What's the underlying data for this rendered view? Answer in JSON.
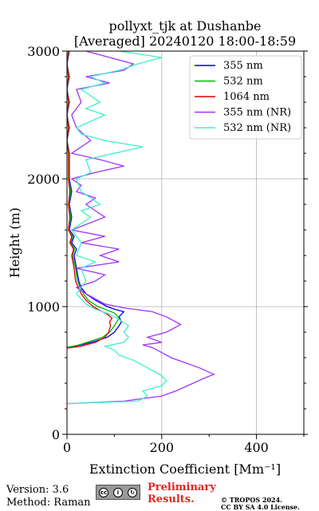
{
  "chart_data": {
    "type": "line",
    "title": "pollyxt_tjk at Dushanbe",
    "subtitle": "[Averaged] 20240120 18:00-18:59",
    "xlabel": "Extinction Coefficient [Mm⁻¹]",
    "ylabel": "Height (m)",
    "xlim": [
      0,
      500
    ],
    "ylim": [
      0,
      3000
    ],
    "xticks": [
      0,
      200,
      400
    ],
    "yticks": [
      0,
      1000,
      2000,
      3000
    ],
    "grid": true,
    "legend_position": "top-right",
    "series": [
      {
        "name": "355 nm",
        "color": "#0000ee",
        "points": [
          [
            0,
            680
          ],
          [
            30,
            700
          ],
          [
            60,
            730
          ],
          [
            85,
            760
          ],
          [
            100,
            800
          ],
          [
            110,
            850
          ],
          [
            115,
            880
          ],
          [
            110,
            920
          ],
          [
            120,
            960
          ],
          [
            100,
            980
          ],
          [
            85,
            1000
          ],
          [
            60,
            1050
          ],
          [
            40,
            1100
          ],
          [
            30,
            1150
          ],
          [
            25,
            1200
          ],
          [
            20,
            1300
          ],
          [
            15,
            1400
          ],
          [
            20,
            1450
          ],
          [
            10,
            1500
          ],
          [
            15,
            1550
          ],
          [
            5,
            1600
          ],
          [
            10,
            1700
          ],
          [
            5,
            1800
          ],
          [
            10,
            1900
          ],
          [
            5,
            2000
          ],
          [
            5,
            2100
          ],
          [
            5,
            2200
          ],
          [
            0,
            2300
          ],
          [
            5,
            2400
          ],
          [
            0,
            2500
          ],
          [
            5,
            2600
          ],
          [
            0,
            2700
          ],
          [
            5,
            2800
          ],
          [
            0,
            2900
          ],
          [
            5,
            3000
          ]
        ]
      },
      {
        "name": "532 nm",
        "color": "#00bb00",
        "points": [
          [
            0,
            680
          ],
          [
            25,
            700
          ],
          [
            50,
            730
          ],
          [
            75,
            760
          ],
          [
            90,
            800
          ],
          [
            100,
            850
          ],
          [
            105,
            880
          ],
          [
            110,
            910
          ],
          [
            100,
            950
          ],
          [
            80,
            980
          ],
          [
            65,
            1000
          ],
          [
            45,
            1050
          ],
          [
            35,
            1100
          ],
          [
            28,
            1150
          ],
          [
            22,
            1200
          ],
          [
            18,
            1300
          ],
          [
            12,
            1400
          ],
          [
            16,
            1450
          ],
          [
            8,
            1500
          ],
          [
            12,
            1550
          ],
          [
            4,
            1600
          ],
          [
            8,
            1700
          ],
          [
            4,
            1800
          ],
          [
            8,
            1900
          ],
          [
            4,
            2000
          ],
          [
            4,
            2100
          ],
          [
            4,
            2200
          ],
          [
            0,
            2300
          ],
          [
            4,
            2400
          ],
          [
            0,
            2500
          ],
          [
            4,
            2600
          ],
          [
            0,
            2700
          ],
          [
            4,
            2800
          ],
          [
            0,
            2900
          ],
          [
            4,
            3000
          ]
        ]
      },
      {
        "name": "1064 nm",
        "color": "#dd0000",
        "points": [
          [
            0,
            675
          ],
          [
            30,
            690
          ],
          [
            60,
            720
          ],
          [
            80,
            760
          ],
          [
            88,
            800
          ],
          [
            92,
            850
          ],
          [
            90,
            880
          ],
          [
            95,
            910
          ],
          [
            85,
            940
          ],
          [
            70,
            970
          ],
          [
            55,
            1000
          ],
          [
            40,
            1050
          ],
          [
            30,
            1100
          ],
          [
            24,
            1150
          ],
          [
            18,
            1200
          ],
          [
            15,
            1300
          ],
          [
            10,
            1400
          ],
          [
            14,
            1450
          ],
          [
            6,
            1500
          ],
          [
            10,
            1550
          ],
          [
            3,
            1600
          ],
          [
            6,
            1700
          ],
          [
            3,
            1800
          ],
          [
            6,
            1900
          ],
          [
            3,
            2000
          ],
          [
            3,
            2100
          ],
          [
            3,
            2200
          ],
          [
            0,
            2300
          ],
          [
            3,
            2400
          ],
          [
            0,
            2500
          ],
          [
            3,
            2600
          ],
          [
            0,
            2700
          ],
          [
            3,
            2800
          ],
          [
            0,
            2900
          ],
          [
            3,
            3000
          ]
        ]
      },
      {
        "name": "355 nm (NR)",
        "color": "#a033ff",
        "points": [
          [
            0,
            240
          ],
          [
            120,
            260
          ],
          [
            200,
            300
          ],
          [
            230,
            340
          ],
          [
            260,
            390
          ],
          [
            290,
            440
          ],
          [
            310,
            470
          ],
          [
            280,
            520
          ],
          [
            250,
            560
          ],
          [
            220,
            600
          ],
          [
            200,
            640
          ],
          [
            180,
            680
          ],
          [
            160,
            700
          ],
          [
            200,
            720
          ],
          [
            170,
            760
          ],
          [
            210,
            800
          ],
          [
            240,
            860
          ],
          [
            210,
            920
          ],
          [
            180,
            960
          ],
          [
            120,
            990
          ],
          [
            80,
            1020
          ],
          [
            40,
            1100
          ],
          [
            20,
            1150
          ],
          [
            60,
            1200
          ],
          [
            80,
            1250
          ],
          [
            20,
            1300
          ],
          [
            110,
            1350
          ],
          [
            70,
            1400
          ],
          [
            110,
            1450
          ],
          [
            30,
            1500
          ],
          [
            80,
            1550
          ],
          [
            10,
            1600
          ],
          [
            80,
            1700
          ],
          [
            40,
            1800
          ],
          [
            60,
            1850
          ],
          [
            20,
            1900
          ],
          [
            30,
            1950
          ],
          [
            10,
            2000
          ],
          [
            60,
            2050
          ],
          [
            120,
            2100
          ],
          [
            70,
            2150
          ],
          [
            10,
            2200
          ],
          [
            50,
            2300
          ],
          [
            20,
            2400
          ],
          [
            10,
            2500
          ],
          [
            30,
            2600
          ],
          [
            20,
            2700
          ],
          [
            90,
            2750
          ],
          [
            40,
            2800
          ],
          [
            120,
            2850
          ],
          [
            140,
            2900
          ],
          [
            90,
            2950
          ],
          [
            40,
            3000
          ]
        ]
      },
      {
        "name": "532 nm (NR)",
        "color": "#40eecc",
        "points": [
          [
            0,
            240
          ],
          [
            150,
            260
          ],
          [
            170,
            300
          ],
          [
            160,
            340
          ],
          [
            200,
            380
          ],
          [
            210,
            420
          ],
          [
            200,
            460
          ],
          [
            180,
            500
          ],
          [
            160,
            540
          ],
          [
            140,
            580
          ],
          [
            110,
            620
          ],
          [
            100,
            660
          ],
          [
            80,
            690
          ],
          [
            120,
            720
          ],
          [
            130,
            760
          ],
          [
            120,
            800
          ],
          [
            130,
            850
          ],
          [
            110,
            900
          ],
          [
            90,
            940
          ],
          [
            60,
            980
          ],
          [
            40,
            1020
          ],
          [
            20,
            1100
          ],
          [
            40,
            1200
          ],
          [
            30,
            1300
          ],
          [
            60,
            1350
          ],
          [
            20,
            1400
          ],
          [
            30,
            1500
          ],
          [
            10,
            1600
          ],
          [
            50,
            1700
          ],
          [
            30,
            1750
          ],
          [
            70,
            1800
          ],
          [
            30,
            1900
          ],
          [
            20,
            2000
          ],
          [
            50,
            2050
          ],
          [
            40,
            2150
          ],
          [
            160,
            2250
          ],
          [
            80,
            2300
          ],
          [
            30,
            2350
          ],
          [
            20,
            2400
          ],
          [
            80,
            2500
          ],
          [
            40,
            2550
          ],
          [
            70,
            2600
          ],
          [
            30,
            2700
          ],
          [
            80,
            2750
          ],
          [
            50,
            2800
          ],
          [
            110,
            2850
          ],
          [
            150,
            2900
          ],
          [
            200,
            2950
          ],
          [
            110,
            3000
          ]
        ]
      }
    ]
  },
  "footer": {
    "version": "Version: 3.6",
    "method": "Method: Raman",
    "preliminary_line1": "Preliminary",
    "preliminary_line2": "Results.",
    "preliminary_color": "#e82222",
    "copyright_line1": "© TROPOS 2024.",
    "copyright_line2": "CC BY SA 4.0 License.",
    "license_badge_text": "cc by sa"
  }
}
